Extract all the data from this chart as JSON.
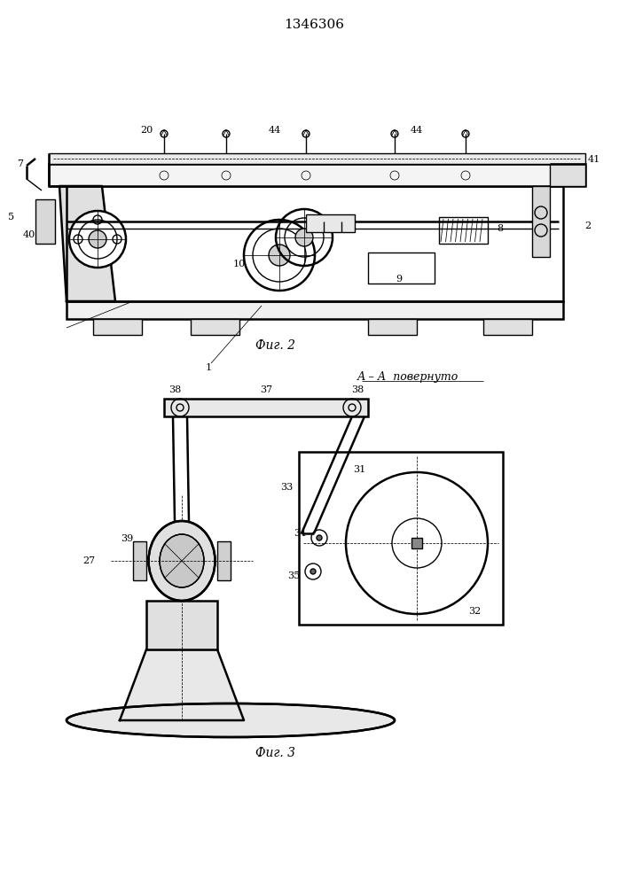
{
  "title": "1346306",
  "title_fontsize": 11,
  "fig1_caption": "Фиг. 2",
  "fig2_caption": "Фиг. 3",
  "section_label": "А – А  повернуто",
  "line_color": "#000000",
  "bg_color": "#ffffff",
  "lw": 1.0,
  "lwt": 1.8,
  "lwn": 0.55
}
